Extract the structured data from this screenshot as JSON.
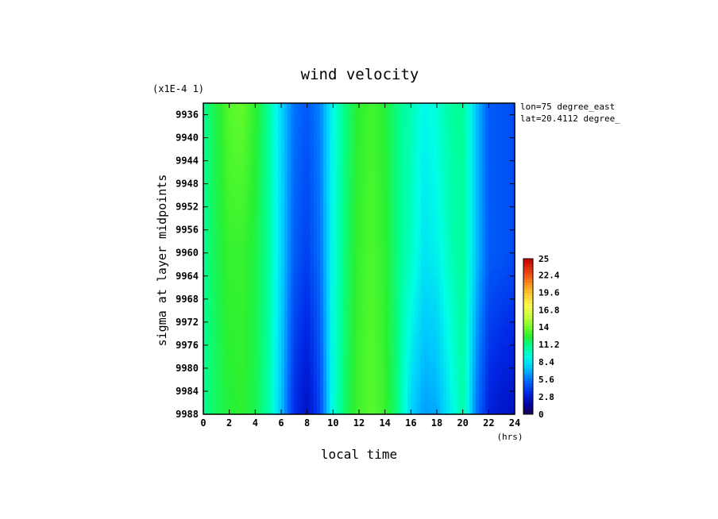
{
  "chart_data": {
    "type": "heatmap",
    "title": "wind velocity",
    "scale_note": "(x1E-4 1)",
    "xlabel": "local time",
    "xunit": "(hrs)",
    "ylabel": "sigma at layer midpoints",
    "annotations": [
      "lon=75 degree_east",
      "lat=20.4112 degree_"
    ],
    "x_ticks": [
      "0",
      "2",
      "4",
      "6",
      "8",
      "10",
      "12",
      "14",
      "16",
      "18",
      "20",
      "22",
      "24"
    ],
    "y_ticks": [
      "9936",
      "9940",
      "9944",
      "9948",
      "9952",
      "9956",
      "9960",
      "9964",
      "9968",
      "9972",
      "9976",
      "9980",
      "9984",
      "9988"
    ],
    "xlim": [
      0,
      24
    ],
    "ylim": [
      9934,
      9988
    ],
    "y_inverted": true,
    "colorbar": {
      "min": 0,
      "max": 25,
      "tick_labels": [
        "25",
        "22.4",
        "19.6",
        "16.8",
        "14",
        "11.2",
        "8.4",
        "5.6",
        "2.8",
        "0"
      ]
    },
    "x": [
      0,
      1,
      2,
      3,
      4,
      5,
      6,
      7,
      8,
      9,
      10,
      11,
      12,
      13,
      14,
      15,
      16,
      17,
      18,
      19,
      20,
      21,
      22,
      23,
      24
    ],
    "y": [
      9934,
      9960,
      9988
    ],
    "z": [
      [
        11.0,
        12.2,
        13.4,
        13.6,
        12.6,
        11.0,
        8.0,
        5.6,
        4.9,
        6.0,
        9.2,
        11.4,
        12.6,
        13.0,
        12.4,
        11.2,
        10.4,
        9.0,
        9.6,
        10.8,
        11.0,
        7.5,
        5.0,
        4.8,
        4.5
      ],
      [
        11.0,
        12.0,
        12.8,
        12.8,
        12.2,
        11.0,
        8.0,
        5.0,
        4.2,
        5.6,
        9.4,
        11.6,
        12.8,
        13.2,
        12.6,
        11.2,
        10.0,
        8.4,
        8.8,
        10.2,
        11.0,
        7.5,
        5.0,
        4.8,
        4.5
      ],
      [
        11.0,
        11.8,
        12.4,
        12.6,
        12.0,
        10.8,
        7.4,
        3.6,
        2.4,
        4.4,
        9.6,
        11.8,
        13.0,
        13.4,
        12.8,
        11.2,
        7.8,
        6.6,
        6.8,
        8.6,
        10.8,
        5.8,
        3.2,
        2.6,
        2.4
      ]
    ]
  }
}
